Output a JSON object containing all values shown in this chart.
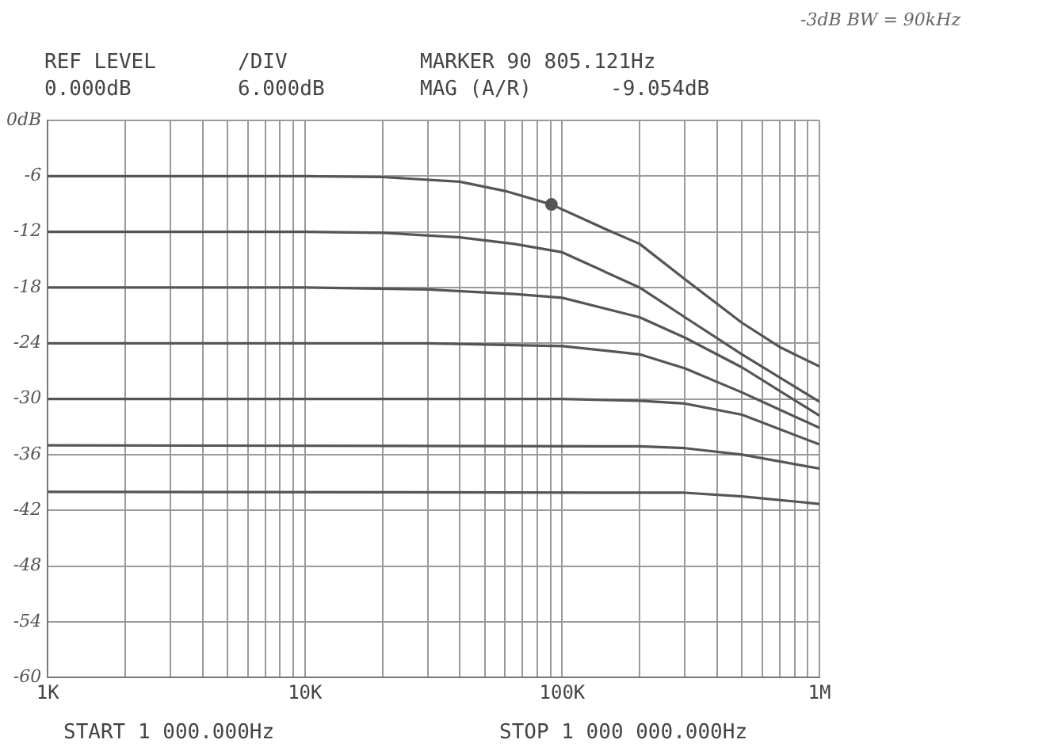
{
  "chart_data": {
    "type": "line",
    "annotations": [
      "REF LEVEL",
      "0.000dB",
      "/DIV",
      "6.000dB",
      "MARKER 90 805.121Hz",
      "MAG (A/R)",
      "-9.054dB",
      "-3dB BW = 90kHz",
      "START 1 000.000Hz",
      "STOP 1 000 000.000Hz"
    ],
    "log": "x",
    "grid": true,
    "legend": false,
    "marker": "none",
    "line_style": "solid",
    "xlim": [
      1000,
      1000000
    ],
    "xticks": [
      {
        "value": 1000,
        "label": "1K"
      },
      {
        "value": 2000,
        "label": null
      },
      {
        "value": 3000,
        "label": null
      },
      {
        "value": 4000,
        "label": null
      },
      {
        "value": 5000,
        "label": null
      },
      {
        "value": 6000,
        "label": null
      },
      {
        "value": 7000,
        "label": null
      },
      {
        "value": 8000,
        "label": null
      },
      {
        "value": 9000,
        "label": null
      },
      {
        "value": 10000,
        "label": "10K"
      },
      {
        "value": 20000,
        "label": null
      },
      {
        "value": 30000,
        "label": null
      },
      {
        "value": 40000,
        "label": null
      },
      {
        "value": 50000,
        "label": null
      },
      {
        "value": 60000,
        "label": null
      },
      {
        "value": 70000,
        "label": null
      },
      {
        "value": 80000,
        "label": null
      },
      {
        "value": 90000,
        "label": null
      },
      {
        "value": 100000,
        "label": "100K"
      },
      {
        "value": 200000,
        "label": null
      },
      {
        "value": 300000,
        "label": null
      },
      {
        "value": 400000,
        "label": null
      },
      {
        "value": 500000,
        "label": null
      },
      {
        "value": 600000,
        "label": null
      },
      {
        "value": 700000,
        "label": null
      },
      {
        "value": 800000,
        "label": null
      },
      {
        "value": 900000,
        "label": null
      },
      {
        "value": 1000000,
        "label": "1M"
      }
    ],
    "ylim": [
      -60,
      0
    ],
    "yticks": [
      -60,
      -54,
      -48,
      -42,
      -36,
      -30,
      -24,
      -18,
      -12,
      -6,
      {
        "value": 0,
        "label": "0dB"
      }
    ],
    "series": [
      {
        "color": "#555555",
        "x": [
          1000,
          10000,
          20000,
          40000,
          60000,
          90805.121,
          150000,
          200000,
          300000,
          500000,
          700000,
          1000000
        ],
        "values": [
          -6,
          -6,
          -6.1,
          -6.6,
          -7.6,
          -9.054,
          -11.8,
          -13.3,
          -17.1,
          -21.8,
          -24.4,
          -26.5
        ]
      },
      {
        "color": "#555555",
        "x": [
          1000,
          10000,
          20000,
          40000,
          65000,
          100000,
          200000,
          300000,
          500000,
          1000000
        ],
        "values": [
          -12,
          -12,
          -12.1,
          -12.6,
          -13.3,
          -14.2,
          -18,
          -21.2,
          -25.2,
          -30.3
        ]
      },
      {
        "color": "#555555",
        "x": [
          1000,
          10000,
          30000,
          65000,
          100000,
          200000,
          300000,
          500000,
          1000000
        ],
        "values": [
          -18,
          -18,
          -18.2,
          -18.7,
          -19.1,
          -21.2,
          -23.4,
          -26.6,
          -31.8
        ]
      },
      {
        "color": "#555555",
        "x": [
          1000,
          30000,
          65000,
          100000,
          200000,
          300000,
          500000,
          1000000
        ],
        "values": [
          -24,
          -24,
          -24.2,
          -24.3,
          -25.2,
          -26.7,
          -29.3,
          -33.1
        ]
      },
      {
        "color": "#555555",
        "x": [
          1000,
          100000,
          200000,
          300000,
          500000,
          1000000
        ],
        "values": [
          -30,
          -30,
          -30.2,
          -30.5,
          -31.7,
          -34.9
        ]
      },
      {
        "color": "#555555",
        "x": [
          1000,
          200000,
          300000,
          500000,
          1000000
        ],
        "values": [
          -35,
          -35.1,
          -35.3,
          -36,
          -37.5
        ]
      },
      {
        "color": "#555555",
        "x": [
          1000,
          300000,
          500000,
          1000000
        ],
        "values": [
          -40,
          -40.1,
          -40.5,
          -41.3
        ]
      },
      {
        "type": "scatter",
        "marker": "circle",
        "color": "#555555",
        "x": [
          90805.121
        ],
        "values": [
          -9.054
        ]
      }
    ]
  }
}
